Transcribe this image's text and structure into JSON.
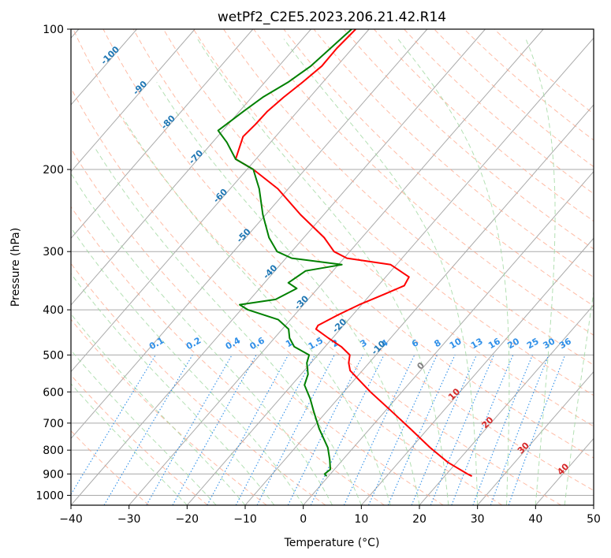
{
  "chart_data": {
    "type": "skew-t",
    "title": "wetPf2_C2E5.2023.206.21.42.R14",
    "xlabel": "Temperature (°C)",
    "ylabel": "Pressure (hPa)",
    "xlim": [
      -40,
      50
    ],
    "ylim": [
      1050,
      100
    ],
    "y_scale": "log",
    "grid": true,
    "x_ticks": [
      -40,
      -30,
      -20,
      -10,
      0,
      10,
      20,
      30,
      40,
      50
    ],
    "y_ticks": [
      100,
      200,
      300,
      400,
      500,
      600,
      700,
      800,
      900,
      1000
    ],
    "colors": {
      "temperature": "#ff0000",
      "dewpoint": "#008000",
      "isotherm": "#aaaaaa",
      "dry_adiabat": "#ff9f80",
      "moist_adiabat": "#a0d8a0",
      "mixing_ratio": "#2f8fe8",
      "isotherm_label": "#1f77b4",
      "warm_label": "#d62728",
      "zero_label": "#808080"
    },
    "isotherm_labels": [
      {
        "t": -100,
        "p": 115
      },
      {
        "t": -90,
        "p": 135
      },
      {
        "t": -80,
        "p": 160
      },
      {
        "t": -70,
        "p": 190
      },
      {
        "t": -60,
        "p": 230
      },
      {
        "t": -50,
        "p": 280
      },
      {
        "t": -40,
        "p": 335
      },
      {
        "t": -30,
        "p": 390
      },
      {
        "t": -20,
        "p": 437
      },
      {
        "t": -10,
        "p": 487
      },
      {
        "t": 0,
        "p": 533
      },
      {
        "t": 10,
        "p": 613
      },
      {
        "t": 20,
        "p": 705
      },
      {
        "t": 30,
        "p": 800
      },
      {
        "t": 40,
        "p": 888
      }
    ],
    "mixing_ratio_labels": [
      "0.1",
      "0.2",
      "0.4",
      "0.6",
      "1",
      "1.5",
      "2",
      "3",
      "4",
      "6",
      "8",
      "10",
      "13",
      "16",
      "20",
      "25",
      "30",
      "36"
    ],
    "mixing_ratio_values": [
      0.1,
      0.2,
      0.4,
      0.6,
      1,
      1.5,
      2,
      3,
      4,
      6,
      8,
      10,
      13,
      16,
      20,
      25,
      30,
      36
    ],
    "series": [
      {
        "key": "temperature",
        "points": [
          [
            -62.3,
            100
          ],
          [
            -62.7,
            110
          ],
          [
            -62.6,
            120
          ],
          [
            -63.5,
            130
          ],
          [
            -64.5,
            140
          ],
          [
            -65.2,
            150
          ],
          [
            -65.3,
            160
          ],
          [
            -65.6,
            170
          ],
          [
            -63.5,
            190
          ],
          [
            -58.9,
            200
          ],
          [
            -51.8,
            220
          ],
          [
            -44.0,
            250
          ],
          [
            -36.5,
            280
          ],
          [
            -32.7,
            300
          ],
          [
            -29.5,
            310
          ],
          [
            -21.0,
            320
          ],
          [
            -16.0,
            340
          ],
          [
            -15.5,
            355
          ],
          [
            -17.6,
            370
          ],
          [
            -20.4,
            390
          ],
          [
            -22.5,
            410
          ],
          [
            -24.4,
            432
          ],
          [
            -24.2,
            440
          ],
          [
            -20.7,
            460
          ],
          [
            -17.2,
            480
          ],
          [
            -14.5,
            500
          ],
          [
            -13.5,
            520
          ],
          [
            -12.1,
            540
          ],
          [
            -5.4,
            600
          ],
          [
            1.1,
            660
          ],
          [
            7.0,
            720
          ],
          [
            13.2,
            790
          ],
          [
            18.5,
            850
          ],
          [
            23.6,
            900
          ],
          [
            24.7,
            910
          ]
        ]
      },
      {
        "key": "dewpoint",
        "points": [
          [
            -63.0,
            100
          ],
          [
            -64.5,
            120
          ],
          [
            -66.0,
            130
          ],
          [
            -68.1,
            140
          ],
          [
            -69.3,
            150
          ],
          [
            -70.3,
            160
          ],
          [
            -70.8,
            165
          ],
          [
            -67.5,
            175
          ],
          [
            -63.5,
            190
          ],
          [
            -58.9,
            200
          ],
          [
            -55.0,
            220
          ],
          [
            -50.5,
            250
          ],
          [
            -46.0,
            280
          ],
          [
            -42.5,
            300
          ],
          [
            -39.0,
            310
          ],
          [
            -29.4,
            320
          ],
          [
            -34.7,
            330
          ],
          [
            -35.9,
            350
          ],
          [
            -33.6,
            360
          ],
          [
            -35.6,
            380
          ],
          [
            -41.0,
            390
          ],
          [
            -38.8,
            400
          ],
          [
            -32.1,
            420
          ],
          [
            -28.9,
            440
          ],
          [
            -27.4,
            460
          ],
          [
            -25.3,
            480
          ],
          [
            -21.5,
            500
          ],
          [
            -20.7,
            520
          ],
          [
            -18.8,
            550
          ],
          [
            -17.8,
            580
          ],
          [
            -14.8,
            620
          ],
          [
            -12.3,
            660
          ],
          [
            -8.7,
            720
          ],
          [
            -4.4,
            790
          ],
          [
            -2.2,
            840
          ],
          [
            -0.7,
            880
          ],
          [
            -1.0,
            900
          ],
          [
            -0.3,
            910
          ]
        ]
      }
    ]
  }
}
